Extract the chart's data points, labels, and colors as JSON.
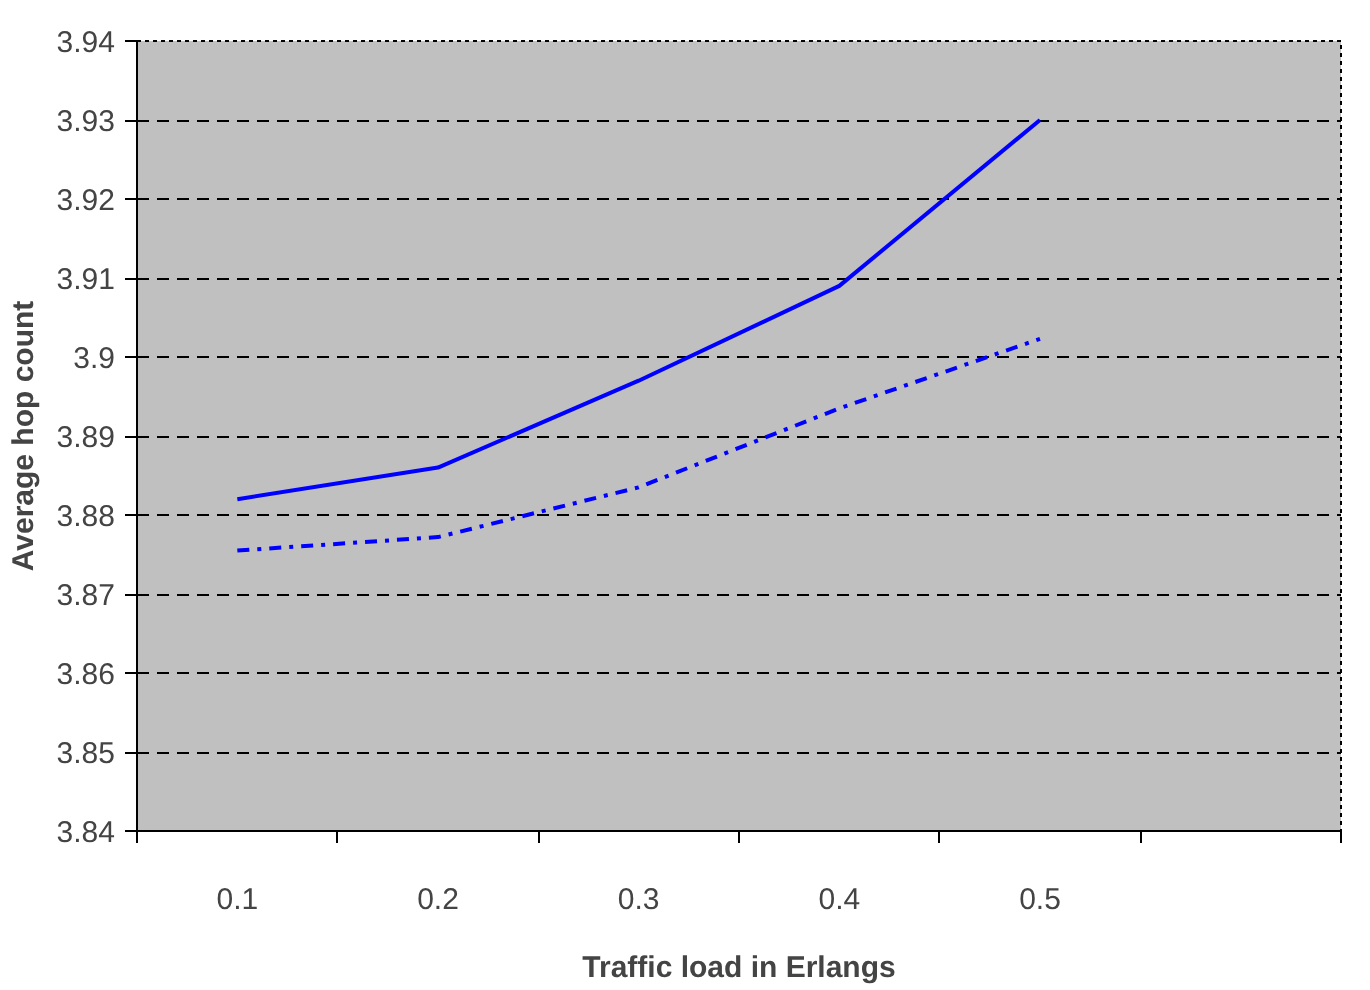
{
  "chart_data": {
    "type": "line",
    "xlabel": "Traffic load in Erlangs",
    "ylabel": "Average hop count",
    "categories": [
      "0.1",
      "0.2",
      "0.3",
      "0.4",
      "0.5",
      null
    ],
    "series": [
      {
        "color": "#0000ff",
        "line_style": "solid",
        "values": [
          3.882,
          3.886,
          3.897,
          3.909,
          3.93,
          null
        ]
      },
      {
        "color": "#0000ff",
        "line_style": "dashdot",
        "values": [
          3.8755,
          3.8772,
          3.8835,
          3.8935,
          3.9023,
          null
        ]
      }
    ],
    "ylim": [
      3.84,
      3.94
    ],
    "yticks": [
      {
        "value": 3.84,
        "label": "3.84"
      },
      {
        "value": 3.85,
        "label": "3.85"
      },
      {
        "value": 3.86,
        "label": "3.86"
      },
      {
        "value": 3.87,
        "label": "3.87"
      },
      {
        "value": 3.88,
        "label": "3.88"
      },
      {
        "value": 3.89,
        "label": "3.89"
      },
      3.9,
      {
        "value": 3.91,
        "label": "3.91"
      },
      {
        "value": 3.92,
        "label": "3.92"
      },
      {
        "value": 3.93,
        "label": "3.93"
      },
      {
        "value": 3.94,
        "label": "3.94"
      }
    ],
    "grid": "y",
    "marker": "none"
  }
}
